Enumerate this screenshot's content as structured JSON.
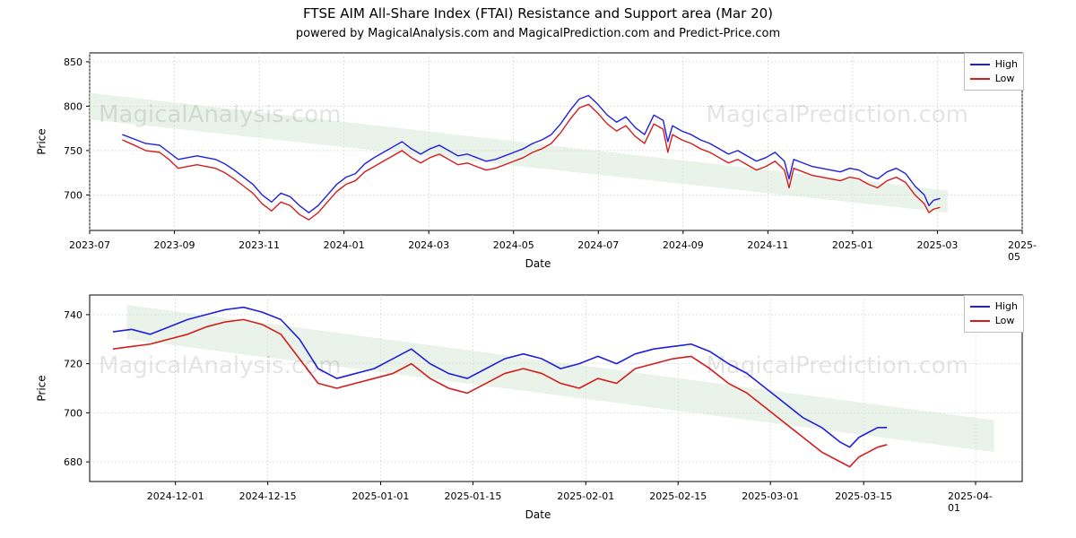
{
  "title": "FTSE AIM All-Share Index (FTAI) Resistance and Support area (Mar 20)",
  "subtitle": "powered by MagicalAnalysis.com and MagicalPrediction.com and Predict-Price.com",
  "legend": {
    "high": "High",
    "low": "Low"
  },
  "colors": {
    "high_line": "#1f1fdd",
    "low_line": "#d41c1c",
    "axis": "#000000",
    "grid": "#cccccc",
    "spine": "#000000",
    "band_fill": "#d9ead9",
    "band_fill_opacity": 0.55,
    "bg": "#ffffff",
    "watermark": "#000000",
    "watermark_opacity": 0.1
  },
  "typography": {
    "title_fontsize": 15,
    "subtitle_fontsize": 13,
    "axis_label_fontsize": 12,
    "tick_fontsize": 11,
    "legend_fontsize": 11,
    "watermark_fontsize": 26
  },
  "watermarks": {
    "top_left": "MagicalAnalysis.com",
    "top_right": "MagicalPrediction.com",
    "bottom_left": "MagicalAnalysis.com",
    "bottom_right": "MagicalPrediction.com"
  },
  "top_chart": {
    "type": "line",
    "xlabel": "Date",
    "ylabel": "Price",
    "xlim": [
      "2023-07",
      "2025-05"
    ],
    "ylim": [
      660,
      860
    ],
    "yticks": [
      700,
      750,
      800,
      850
    ],
    "xticks": [
      "2023-07",
      "2023-09",
      "2023-11",
      "2024-01",
      "2024-03",
      "2024-05",
      "2024-07",
      "2024-09",
      "2024-11",
      "2025-01",
      "2025-03",
      "2025-05"
    ],
    "grid": true,
    "line_width": 1.4,
    "band": {
      "x": [
        0,
        0.92
      ],
      "y_top": [
        815,
        705
      ],
      "y_bottom": [
        785,
        680
      ]
    },
    "series_high": [
      [
        0.035,
        768
      ],
      [
        0.05,
        762
      ],
      [
        0.06,
        758
      ],
      [
        0.075,
        756
      ],
      [
        0.085,
        748
      ],
      [
        0.095,
        740
      ],
      [
        0.105,
        742
      ],
      [
        0.115,
        744
      ],
      [
        0.125,
        742
      ],
      [
        0.135,
        740
      ],
      [
        0.145,
        735
      ],
      [
        0.155,
        728
      ],
      [
        0.165,
        720
      ],
      [
        0.175,
        712
      ],
      [
        0.185,
        700
      ],
      [
        0.195,
        692
      ],
      [
        0.205,
        702
      ],
      [
        0.215,
        698
      ],
      [
        0.225,
        688
      ],
      [
        0.235,
        680
      ],
      [
        0.245,
        688
      ],
      [
        0.255,
        700
      ],
      [
        0.265,
        712
      ],
      [
        0.275,
        720
      ],
      [
        0.285,
        724
      ],
      [
        0.295,
        735
      ],
      [
        0.305,
        742
      ],
      [
        0.315,
        748
      ],
      [
        0.325,
        754
      ],
      [
        0.335,
        760
      ],
      [
        0.345,
        752
      ],
      [
        0.355,
        746
      ],
      [
        0.365,
        752
      ],
      [
        0.375,
        756
      ],
      [
        0.385,
        750
      ],
      [
        0.395,
        744
      ],
      [
        0.405,
        746
      ],
      [
        0.415,
        742
      ],
      [
        0.425,
        738
      ],
      [
        0.435,
        740
      ],
      [
        0.445,
        744
      ],
      [
        0.455,
        748
      ],
      [
        0.465,
        752
      ],
      [
        0.475,
        758
      ],
      [
        0.485,
        762
      ],
      [
        0.495,
        768
      ],
      [
        0.505,
        780
      ],
      [
        0.515,
        795
      ],
      [
        0.525,
        808
      ],
      [
        0.535,
        812
      ],
      [
        0.545,
        802
      ],
      [
        0.555,
        790
      ],
      [
        0.565,
        782
      ],
      [
        0.575,
        788
      ],
      [
        0.585,
        776
      ],
      [
        0.595,
        768
      ],
      [
        0.605,
        790
      ],
      [
        0.615,
        784
      ],
      [
        0.62,
        760
      ],
      [
        0.625,
        778
      ],
      [
        0.635,
        772
      ],
      [
        0.645,
        768
      ],
      [
        0.655,
        762
      ],
      [
        0.665,
        758
      ],
      [
        0.675,
        752
      ],
      [
        0.685,
        746
      ],
      [
        0.695,
        750
      ],
      [
        0.705,
        744
      ],
      [
        0.715,
        738
      ],
      [
        0.725,
        742
      ],
      [
        0.735,
        748
      ],
      [
        0.745,
        738
      ],
      [
        0.75,
        718
      ],
      [
        0.755,
        740
      ],
      [
        0.765,
        736
      ],
      [
        0.775,
        732
      ],
      [
        0.785,
        730
      ],
      [
        0.795,
        728
      ],
      [
        0.805,
        726
      ],
      [
        0.815,
        730
      ],
      [
        0.825,
        728
      ],
      [
        0.835,
        722
      ],
      [
        0.845,
        718
      ],
      [
        0.855,
        726
      ],
      [
        0.865,
        730
      ],
      [
        0.875,
        724
      ],
      [
        0.885,
        710
      ],
      [
        0.895,
        700
      ],
      [
        0.9,
        688
      ],
      [
        0.905,
        694
      ],
      [
        0.912,
        696
      ]
    ],
    "series_low": [
      [
        0.035,
        762
      ],
      [
        0.05,
        755
      ],
      [
        0.06,
        750
      ],
      [
        0.075,
        748
      ],
      [
        0.085,
        740
      ],
      [
        0.095,
        730
      ],
      [
        0.105,
        732
      ],
      [
        0.115,
        734
      ],
      [
        0.125,
        732
      ],
      [
        0.135,
        730
      ],
      [
        0.145,
        725
      ],
      [
        0.155,
        718
      ],
      [
        0.165,
        710
      ],
      [
        0.175,
        702
      ],
      [
        0.185,
        690
      ],
      [
        0.195,
        682
      ],
      [
        0.205,
        692
      ],
      [
        0.215,
        688
      ],
      [
        0.225,
        678
      ],
      [
        0.235,
        672
      ],
      [
        0.245,
        680
      ],
      [
        0.255,
        692
      ],
      [
        0.265,
        704
      ],
      [
        0.275,
        712
      ],
      [
        0.285,
        716
      ],
      [
        0.295,
        726
      ],
      [
        0.305,
        732
      ],
      [
        0.315,
        738
      ],
      [
        0.325,
        744
      ],
      [
        0.335,
        750
      ],
      [
        0.345,
        742
      ],
      [
        0.355,
        736
      ],
      [
        0.365,
        742
      ],
      [
        0.375,
        746
      ],
      [
        0.385,
        740
      ],
      [
        0.395,
        734
      ],
      [
        0.405,
        736
      ],
      [
        0.415,
        732
      ],
      [
        0.425,
        728
      ],
      [
        0.435,
        730
      ],
      [
        0.445,
        734
      ],
      [
        0.455,
        738
      ],
      [
        0.465,
        742
      ],
      [
        0.475,
        748
      ],
      [
        0.485,
        752
      ],
      [
        0.495,
        758
      ],
      [
        0.505,
        770
      ],
      [
        0.515,
        785
      ],
      [
        0.525,
        798
      ],
      [
        0.535,
        802
      ],
      [
        0.545,
        792
      ],
      [
        0.555,
        780
      ],
      [
        0.565,
        772
      ],
      [
        0.575,
        778
      ],
      [
        0.585,
        766
      ],
      [
        0.595,
        758
      ],
      [
        0.605,
        780
      ],
      [
        0.615,
        774
      ],
      [
        0.62,
        748
      ],
      [
        0.625,
        768
      ],
      [
        0.635,
        762
      ],
      [
        0.645,
        758
      ],
      [
        0.655,
        752
      ],
      [
        0.665,
        748
      ],
      [
        0.675,
        742
      ],
      [
        0.685,
        736
      ],
      [
        0.695,
        740
      ],
      [
        0.705,
        734
      ],
      [
        0.715,
        728
      ],
      [
        0.725,
        732
      ],
      [
        0.735,
        738
      ],
      [
        0.745,
        728
      ],
      [
        0.75,
        708
      ],
      [
        0.755,
        730
      ],
      [
        0.765,
        726
      ],
      [
        0.775,
        722
      ],
      [
        0.785,
        720
      ],
      [
        0.795,
        718
      ],
      [
        0.805,
        716
      ],
      [
        0.815,
        720
      ],
      [
        0.825,
        718
      ],
      [
        0.835,
        712
      ],
      [
        0.845,
        708
      ],
      [
        0.855,
        716
      ],
      [
        0.865,
        720
      ],
      [
        0.875,
        714
      ],
      [
        0.885,
        700
      ],
      [
        0.895,
        690
      ],
      [
        0.9,
        680
      ],
      [
        0.905,
        684
      ],
      [
        0.912,
        686
      ]
    ]
  },
  "bottom_chart": {
    "type": "line",
    "xlabel": "Date",
    "ylabel": "Price",
    "xlim": [
      "2024-11-18",
      "2025-04-08"
    ],
    "ylim": [
      672,
      748
    ],
    "yticks": [
      680,
      700,
      720,
      740
    ],
    "xticks": [
      "2024-12-01",
      "2024-12-15",
      "2025-01-01",
      "2025-01-15",
      "2025-02-01",
      "2025-02-15",
      "2025-03-01",
      "2025-03-15",
      "2025-04-01"
    ],
    "xtick_positions": [
      0.092,
      0.191,
      0.312,
      0.411,
      0.532,
      0.631,
      0.73,
      0.83,
      0.95
    ],
    "grid": true,
    "line_width": 1.6,
    "band": {
      "x": [
        0.04,
        0.97
      ],
      "y_top": [
        744,
        697
      ],
      "y_bottom": [
        730,
        684
      ]
    },
    "series_high": [
      [
        0.025,
        733
      ],
      [
        0.045,
        734
      ],
      [
        0.065,
        732
      ],
      [
        0.085,
        735
      ],
      [
        0.105,
        738
      ],
      [
        0.125,
        740
      ],
      [
        0.145,
        742
      ],
      [
        0.165,
        743
      ],
      [
        0.185,
        741
      ],
      [
        0.205,
        738
      ],
      [
        0.225,
        730
      ],
      [
        0.245,
        718
      ],
      [
        0.265,
        714
      ],
      [
        0.285,
        716
      ],
      [
        0.305,
        718
      ],
      [
        0.325,
        722
      ],
      [
        0.345,
        726
      ],
      [
        0.365,
        720
      ],
      [
        0.385,
        716
      ],
      [
        0.405,
        714
      ],
      [
        0.425,
        718
      ],
      [
        0.445,
        722
      ],
      [
        0.465,
        724
      ],
      [
        0.485,
        722
      ],
      [
        0.505,
        718
      ],
      [
        0.525,
        720
      ],
      [
        0.545,
        723
      ],
      [
        0.565,
        720
      ],
      [
        0.585,
        724
      ],
      [
        0.605,
        726
      ],
      [
        0.625,
        727
      ],
      [
        0.645,
        728
      ],
      [
        0.665,
        725
      ],
      [
        0.685,
        720
      ],
      [
        0.705,
        716
      ],
      [
        0.725,
        710
      ],
      [
        0.745,
        704
      ],
      [
        0.765,
        698
      ],
      [
        0.785,
        694
      ],
      [
        0.805,
        688
      ],
      [
        0.815,
        686
      ],
      [
        0.825,
        690
      ],
      [
        0.835,
        692
      ],
      [
        0.845,
        694
      ],
      [
        0.855,
        694
      ]
    ],
    "series_low": [
      [
        0.025,
        726
      ],
      [
        0.045,
        727
      ],
      [
        0.065,
        728
      ],
      [
        0.085,
        730
      ],
      [
        0.105,
        732
      ],
      [
        0.125,
        735
      ],
      [
        0.145,
        737
      ],
      [
        0.165,
        738
      ],
      [
        0.185,
        736
      ],
      [
        0.205,
        732
      ],
      [
        0.225,
        722
      ],
      [
        0.245,
        712
      ],
      [
        0.265,
        710
      ],
      [
        0.285,
        712
      ],
      [
        0.305,
        714
      ],
      [
        0.325,
        716
      ],
      [
        0.345,
        720
      ],
      [
        0.365,
        714
      ],
      [
        0.385,
        710
      ],
      [
        0.405,
        708
      ],
      [
        0.425,
        712
      ],
      [
        0.445,
        716
      ],
      [
        0.465,
        718
      ],
      [
        0.485,
        716
      ],
      [
        0.505,
        712
      ],
      [
        0.525,
        710
      ],
      [
        0.545,
        714
      ],
      [
        0.565,
        712
      ],
      [
        0.585,
        718
      ],
      [
        0.605,
        720
      ],
      [
        0.625,
        722
      ],
      [
        0.645,
        723
      ],
      [
        0.665,
        718
      ],
      [
        0.685,
        712
      ],
      [
        0.705,
        708
      ],
      [
        0.725,
        702
      ],
      [
        0.745,
        696
      ],
      [
        0.765,
        690
      ],
      [
        0.785,
        684
      ],
      [
        0.805,
        680
      ],
      [
        0.815,
        678
      ],
      [
        0.825,
        682
      ],
      [
        0.835,
        684
      ],
      [
        0.845,
        686
      ],
      [
        0.855,
        687
      ]
    ]
  }
}
